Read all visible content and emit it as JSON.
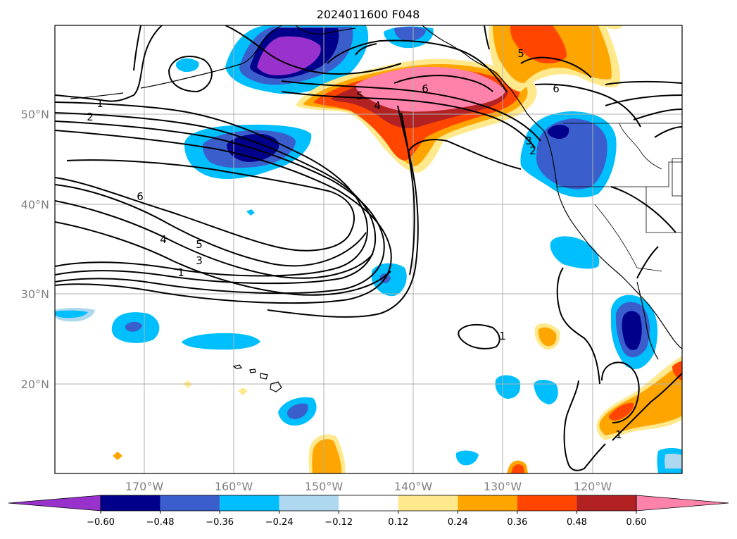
{
  "title": "2024011600 F048",
  "lat_labels": [
    "50°N",
    "40°N",
    "30°N",
    "20°N"
  ],
  "lon_labels": [
    "170°W",
    "160°W",
    "150°W",
    "140°W",
    "130°W",
    "120°W"
  ],
  "colorbar": {
    "ticks": [
      "−0.60",
      "−0.48",
      "−0.36",
      "−0.24",
      "−0.12",
      "0.12",
      "0.24",
      "0.36",
      "0.48",
      "0.60"
    ],
    "colors": [
      "#9932cc",
      "#00008b",
      "#3a5fcd",
      "#00bfff",
      "#add8f0",
      "#ffffff",
      "#ffe98c",
      "#ffa500",
      "#ff4500",
      "#b22222",
      "#ff82ab"
    ]
  },
  "contour_labels": [
    "1",
    "2",
    "6",
    "4",
    "5",
    "3",
    "1",
    "5",
    "4",
    "6",
    "5",
    "6",
    "3",
    "2",
    "1",
    "1"
  ],
  "colors": {
    "gridline": "#b0b0b0",
    "contour": "#000000"
  }
}
